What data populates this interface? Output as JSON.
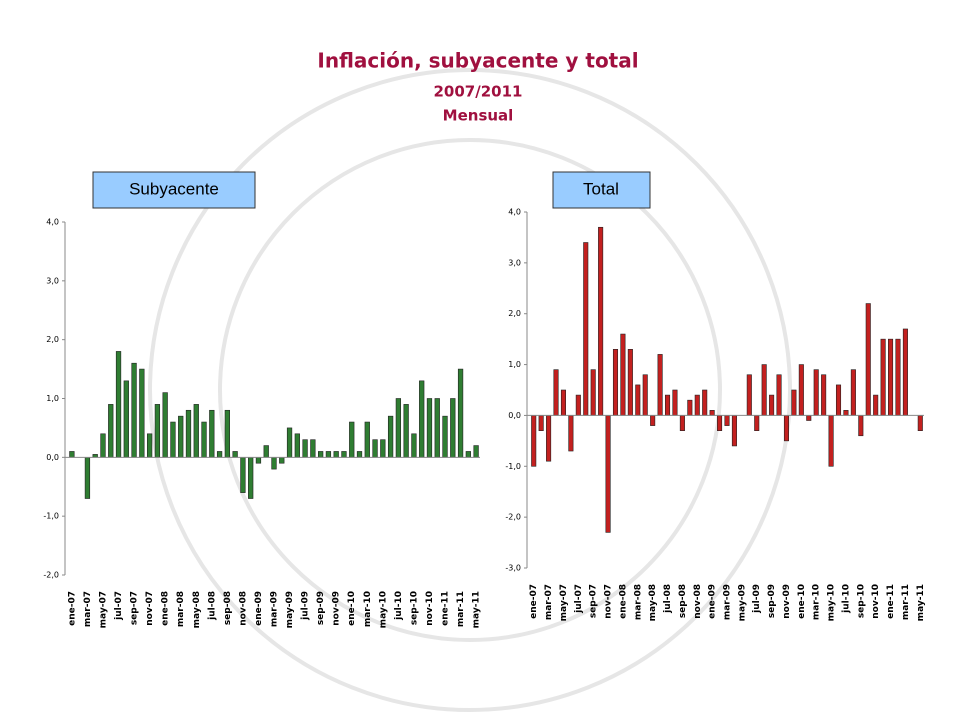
{
  "header": {
    "title": "Inflación, subyacente y total",
    "subtitle": "2007/2011",
    "note": "Mensual"
  },
  "chart_data": [
    {
      "type": "bar",
      "title": "Subyacente",
      "color": "#2f7d32",
      "categories": [
        "ene-07",
        null,
        "mar-07",
        null,
        "may-07",
        null,
        "jul-07",
        null,
        "sep-07",
        null,
        "nov-07",
        null,
        "ene-08",
        null,
        "mar-08",
        null,
        "may-08",
        null,
        "jul-08",
        null,
        "sep-08",
        null,
        "nov-08",
        null,
        "ene-09",
        null,
        "mar-09",
        null,
        "may-09",
        null,
        "jul-09",
        null,
        "sep-09",
        null,
        "nov-09",
        null,
        "ene-10",
        null,
        "mar-10",
        null,
        "may-10",
        null,
        "jul-10",
        null,
        "sep-10",
        null,
        "nov-10",
        null,
        "ene-11",
        null,
        "mar-11",
        null,
        "may-11"
      ],
      "values": [
        0.1,
        0.0,
        -0.7,
        0.05,
        0.4,
        0.9,
        1.8,
        1.3,
        1.6,
        1.5,
        0.4,
        0.9,
        1.1,
        0.6,
        0.7,
        0.8,
        0.9,
        0.6,
        0.8,
        0.1,
        0.8,
        0.1,
        -0.6,
        -0.7,
        -0.1,
        0.2,
        -0.2,
        -0.1,
        0.5,
        0.4,
        0.3,
        0.3,
        0.1,
        0.1,
        0.1,
        0.1,
        0.6,
        0.1,
        0.6,
        0.3,
        0.3,
        0.7,
        1.0,
        0.9,
        0.4,
        1.3,
        1.0,
        1.0,
        0.7,
        1.0,
        1.5,
        0.1,
        0.2
      ],
      "ylim": [
        -2,
        4
      ],
      "yticks": [
        {
          "value": -2,
          "label": "-2,0"
        },
        {
          "value": -1,
          "label": "-1,0"
        },
        {
          "value": 0,
          "label": "0,0"
        },
        {
          "value": 1,
          "label": "1,0"
        },
        {
          "value": 2,
          "label": "2,0"
        },
        {
          "value": 3,
          "label": "3,0"
        },
        {
          "value": 4,
          "label": "4,0"
        }
      ]
    },
    {
      "type": "bar",
      "title": "Total",
      "color": "#c3201f",
      "categories": [
        "ene-07",
        null,
        "mar-07",
        null,
        "may-07",
        null,
        "jul-07",
        null,
        "sep-07",
        null,
        "nov-07",
        null,
        "ene-08",
        null,
        "mar-08",
        null,
        "may-08",
        null,
        "jul-08",
        null,
        "sep-08",
        null,
        "nov-08",
        null,
        "ene-09",
        null,
        "mar-09",
        null,
        "may-09",
        null,
        "jul-09",
        null,
        "sep-09",
        null,
        "nov-09",
        null,
        "ene-10",
        null,
        "mar-10",
        null,
        "may-10",
        null,
        "jul-10",
        null,
        "sep-10",
        null,
        "nov-10",
        null,
        "ene-11",
        null,
        "mar-11",
        null,
        "may-11"
      ],
      "values": [
        -1.0,
        -0.3,
        -0.9,
        0.9,
        0.5,
        -0.7,
        0.4,
        3.4,
        0.9,
        3.7,
        -2.3,
        1.3,
        1.6,
        1.3,
        0.6,
        0.8,
        -0.2,
        1.2,
        0.4,
        0.5,
        -0.3,
        0.3,
        0.4,
        0.5,
        0.1,
        -0.3,
        -0.2,
        -0.6,
        0.0,
        0.8,
        -0.3,
        1.0,
        0.4,
        0.8,
        -0.5,
        0.5,
        1.0,
        -0.1,
        0.9,
        0.8,
        -1.0,
        0.6,
        0.1,
        0.9,
        -0.4,
        2.2,
        0.4,
        1.5,
        1.5,
        1.5,
        1.7,
        0.0,
        -0.3
      ],
      "ylim": [
        -3,
        4
      ],
      "yticks": [
        {
          "value": -3,
          "label": "-3,0"
        },
        {
          "value": -2,
          "label": "-2,0"
        },
        {
          "value": -1,
          "label": "-1,0"
        },
        {
          "value": 0,
          "label": "0,0"
        },
        {
          "value": 1,
          "label": "1,0"
        },
        {
          "value": 2,
          "label": "2,0"
        },
        {
          "value": 3,
          "label": "3,0"
        },
        {
          "value": 4,
          "label": "4,0"
        }
      ]
    }
  ]
}
